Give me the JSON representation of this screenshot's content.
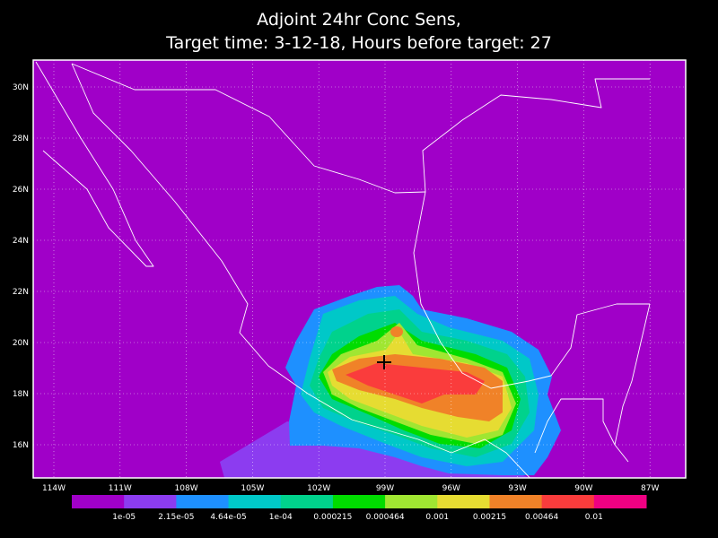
{
  "title": [
    "Adjoint 24hr Conc Sens,",
    "Target time: 3-12-18, Hours before target: 27"
  ],
  "lat_labels": [
    "30N",
    "28N",
    "26N",
    "24N",
    "22N",
    "20N",
    "18N",
    "16N"
  ],
  "lon_labels": [
    "114W",
    "111W",
    "108W",
    "105W",
    "102W",
    "99W",
    "96W",
    "93W",
    "90W",
    "87W"
  ],
  "colorbar": {
    "colors": [
      "#a000c8",
      "#8c3cf0",
      "#1e90ff",
      "#00c8c8",
      "#00d28c",
      "#00dc00",
      "#a0e632",
      "#e6dc32",
      "#f08228",
      "#fa3c3c",
      "#f00082"
    ],
    "labels": [
      "1e-05",
      "2.15e-05",
      "4.64e-05",
      "1e-04",
      "0.000215",
      "0.000464",
      "0.001",
      "0.00215",
      "0.00464",
      "0.01"
    ]
  }
}
